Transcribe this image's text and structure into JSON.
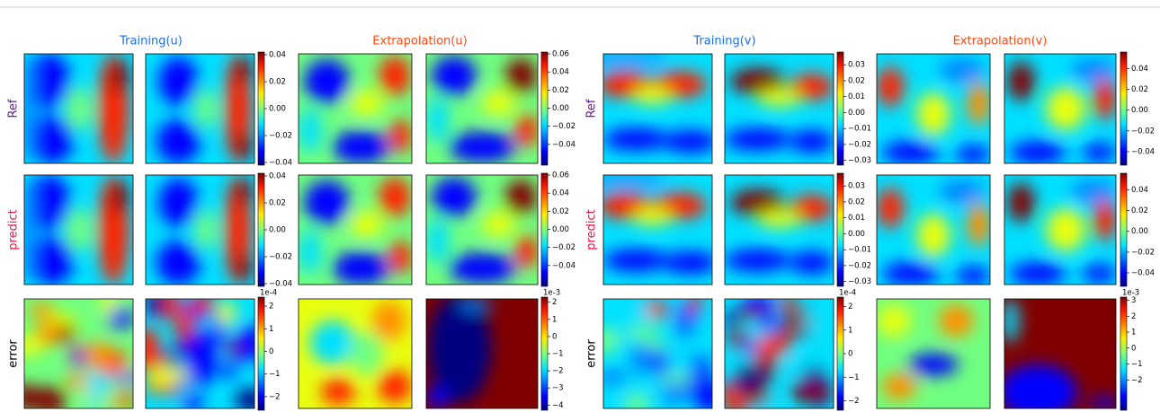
{
  "row_labels": [
    "Ref",
    "predict",
    "error"
  ],
  "panels": [
    {
      "title": "Training(u)",
      "colorbars": [
        {
          "lim": [
            -0.042,
            0.042
          ],
          "ticks": [
            {
              "value": 0.04,
              "label": "0.04"
            },
            {
              "value": 0.02,
              "label": "0.02"
            },
            {
              "value": 0,
              "label": "0.00"
            },
            {
              "value": -0.02,
              "label": "−0.02"
            },
            {
              "value": -0.04,
              "label": "−0.04"
            }
          ]
        },
        {
          "lim": [
            -0.042,
            0.042
          ],
          "ticks": [
            {
              "value": 0.04,
              "label": "0.04"
            },
            {
              "value": 0.02,
              "label": "0.02"
            },
            {
              "value": 0,
              "label": "0.00"
            },
            {
              "value": -0.02,
              "label": "−0.02"
            },
            {
              "value": -0.04,
              "label": "−0.04"
            }
          ]
        },
        {
          "offset_label": "1e-4",
          "lim": [
            -2.6,
            2.4
          ],
          "ticks": [
            2,
            1,
            0,
            {
              "value": -1,
              "label": "−1"
            },
            {
              "value": -2,
              "label": "−2"
            }
          ]
        }
      ]
    },
    {
      "title": "Extrapolation(u)",
      "colorbars": [
        {
          "lim": [
            -0.063,
            0.062
          ],
          "ticks": [
            {
              "value": 0.06,
              "label": "0.06"
            },
            {
              "value": 0.04,
              "label": "0.04"
            },
            {
              "value": 0.02,
              "label": "0.02"
            },
            {
              "value": 0,
              "label": "0.00"
            },
            {
              "value": -0.02,
              "label": "−0.02"
            },
            {
              "value": -0.04,
              "label": "−0.04"
            }
          ]
        },
        {
          "lim": [
            -0.063,
            0.062
          ],
          "ticks": [
            {
              "value": 0.06,
              "label": "0.06"
            },
            {
              "value": 0.04,
              "label": "0.04"
            },
            {
              "value": 0.02,
              "label": "0.02"
            },
            {
              "value": 0,
              "label": "0.00"
            },
            {
              "value": -0.02,
              "label": "−0.02"
            },
            {
              "value": -0.04,
              "label": "−0.04"
            }
          ]
        },
        {
          "offset_label": "1e-3",
          "lim": [
            -4.3,
            2.3
          ],
          "ticks": [
            2,
            1,
            0,
            {
              "value": -1,
              "label": "−1"
            },
            {
              "value": -2,
              "label": "−2"
            },
            {
              "value": -3,
              "label": "−3"
            },
            {
              "value": -4,
              "label": "−4"
            }
          ]
        }
      ]
    },
    {
      "title": "Training(v)",
      "colorbars": [
        {
          "lim": [
            -0.033,
            0.038
          ],
          "ticks": [
            {
              "value": 0.03,
              "label": "0.03"
            },
            {
              "value": 0.02,
              "label": "0.02"
            },
            {
              "value": 0.01,
              "label": "0.01"
            },
            {
              "value": 0,
              "label": "0.00"
            },
            {
              "value": -0.01,
              "label": "−0.01"
            },
            {
              "value": -0.02,
              "label": "−0.02"
            },
            {
              "value": -0.03,
              "label": "−0.03"
            }
          ]
        },
        {
          "lim": [
            -0.033,
            0.038
          ],
          "ticks": [
            {
              "value": 0.03,
              "label": "0.03"
            },
            {
              "value": 0.02,
              "label": "0.02"
            },
            {
              "value": 0.01,
              "label": "0.01"
            },
            {
              "value": 0,
              "label": "0.00"
            },
            {
              "value": -0.01,
              "label": "−0.01"
            },
            {
              "value": -0.02,
              "label": "−0.02"
            },
            {
              "value": -0.03,
              "label": "−0.03"
            }
          ]
        },
        {
          "offset_label": "1e-4",
          "lim": [
            -2.4,
            2.4
          ],
          "ticks": [
            2,
            1,
            0,
            {
              "value": -1,
              "label": "−1"
            },
            {
              "value": -2,
              "label": "−2"
            }
          ]
        }
      ]
    },
    {
      "title": "Extrapolation(v)",
      "colorbars": [
        {
          "lim": [
            -0.053,
            0.056
          ],
          "ticks": [
            {
              "value": 0.04,
              "label": "0.04"
            },
            {
              "value": 0.02,
              "label": "0.02"
            },
            {
              "value": 0,
              "label": "0.00"
            },
            {
              "value": -0.02,
              "label": "−0.02"
            },
            {
              "value": -0.04,
              "label": "−0.04"
            }
          ]
        },
        {
          "lim": [
            -0.053,
            0.056
          ],
          "ticks": [
            {
              "value": 0.04,
              "label": "0.04"
            },
            {
              "value": 0.02,
              "label": "0.02"
            },
            {
              "value": 0,
              "label": "0.00"
            },
            {
              "value": -0.02,
              "label": "−0.02"
            },
            {
              "value": -0.04,
              "label": "−0.04"
            }
          ]
        },
        {
          "offset_label": "1e-3",
          "lim": [
            -3.9,
            3.2
          ],
          "ticks": [
            3,
            2,
            1,
            0,
            {
              "value": -1,
              "label": "−1"
            },
            {
              "value": -2,
              "label": "−2"
            }
          ]
        }
      ]
    }
  ]
}
